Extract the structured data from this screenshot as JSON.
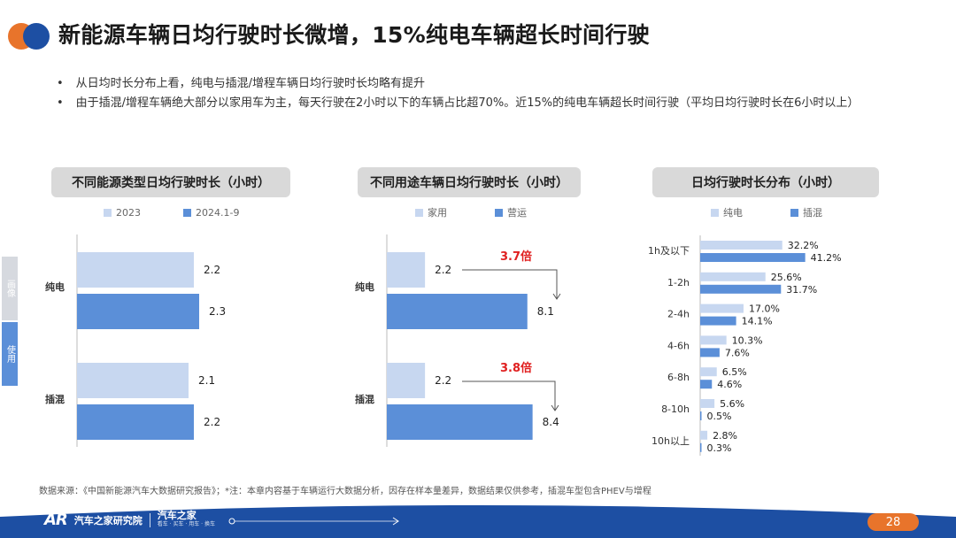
{
  "title": "新能源车辆日均行驶时长微增，15%纯电车辆超长时间行驶",
  "bullets": [
    "从日均时长分布上看，纯电与插混/增程车辆日均行驶时长均略有提升",
    "由于插混/增程车辆绝大部分以家用车为主，每天行驶在2小时以下的车辆占比超70%。近15%的纯电车辆超长时间行驶（平均日均行驶时长在6小时以上）"
  ],
  "side_tabs": [
    "画像",
    "使用"
  ],
  "colors": {
    "light": "#c7d7f0",
    "dark": "#5b8fd8",
    "accent_red": "#e02020",
    "orange": "#e8742b",
    "footer_blue": "#1d4fa3"
  },
  "chart_data": [
    {
      "type": "bar",
      "orientation": "horizontal",
      "title": "不同能源类型日均行驶时长（小时）",
      "categories": [
        "纯电",
        "插混"
      ],
      "series": [
        {
          "name": "2023",
          "values": [
            2.2,
            2.1
          ]
        },
        {
          "name": "2024.1-9",
          "values": [
            2.3,
            2.2
          ]
        }
      ]
    },
    {
      "type": "bar",
      "orientation": "horizontal",
      "title": "不同用途车辆日均行驶时长（小时）",
      "categories": [
        "纯电",
        "插混"
      ],
      "series": [
        {
          "name": "家用",
          "values": [
            2.2,
            2.2
          ]
        },
        {
          "name": "营运",
          "values": [
            8.1,
            8.4
          ]
        }
      ],
      "annotations": [
        "3.7倍",
        "3.8倍"
      ]
    },
    {
      "type": "bar",
      "orientation": "horizontal",
      "title": "日均行驶时长分布（小时）",
      "categories": [
        "1h及以下",
        "1-2h",
        "2-4h",
        "4-6h",
        "6-8h",
        "8-10h",
        "10h以上"
      ],
      "series": [
        {
          "name": "纯电",
          "values": [
            32.2,
            25.6,
            17.0,
            10.3,
            6.5,
            5.6,
            2.8
          ]
        },
        {
          "name": "插混",
          "values": [
            41.2,
            31.7,
            14.1,
            7.6,
            4.6,
            0.5,
            0.3
          ]
        }
      ],
      "value_labels": {
        "纯电": [
          "32.2%",
          "25.6%",
          "17.0%",
          "10.3%",
          "6.5%",
          "5.6%",
          "2.8%"
        ],
        "插混": [
          "41.2%",
          "31.7%",
          "14.1%",
          "7.6%",
          "4.6%",
          "0.5%",
          "0.3%"
        ]
      }
    }
  ],
  "footer": {
    "source": "数据来源：《中国新能源汽车大数据研究报告》；*注：本章内容基于车辆运行大数据分析，因存在样本量差异，数据结果仅供参考，插混车型包含PHEV与增程",
    "brand_mark": "AR",
    "brand_name": "汽车之家研究院",
    "brand_name2": "汽车之家",
    "brand_tag": "看车 · 买车 · 用车 · 换车",
    "page": "28"
  }
}
